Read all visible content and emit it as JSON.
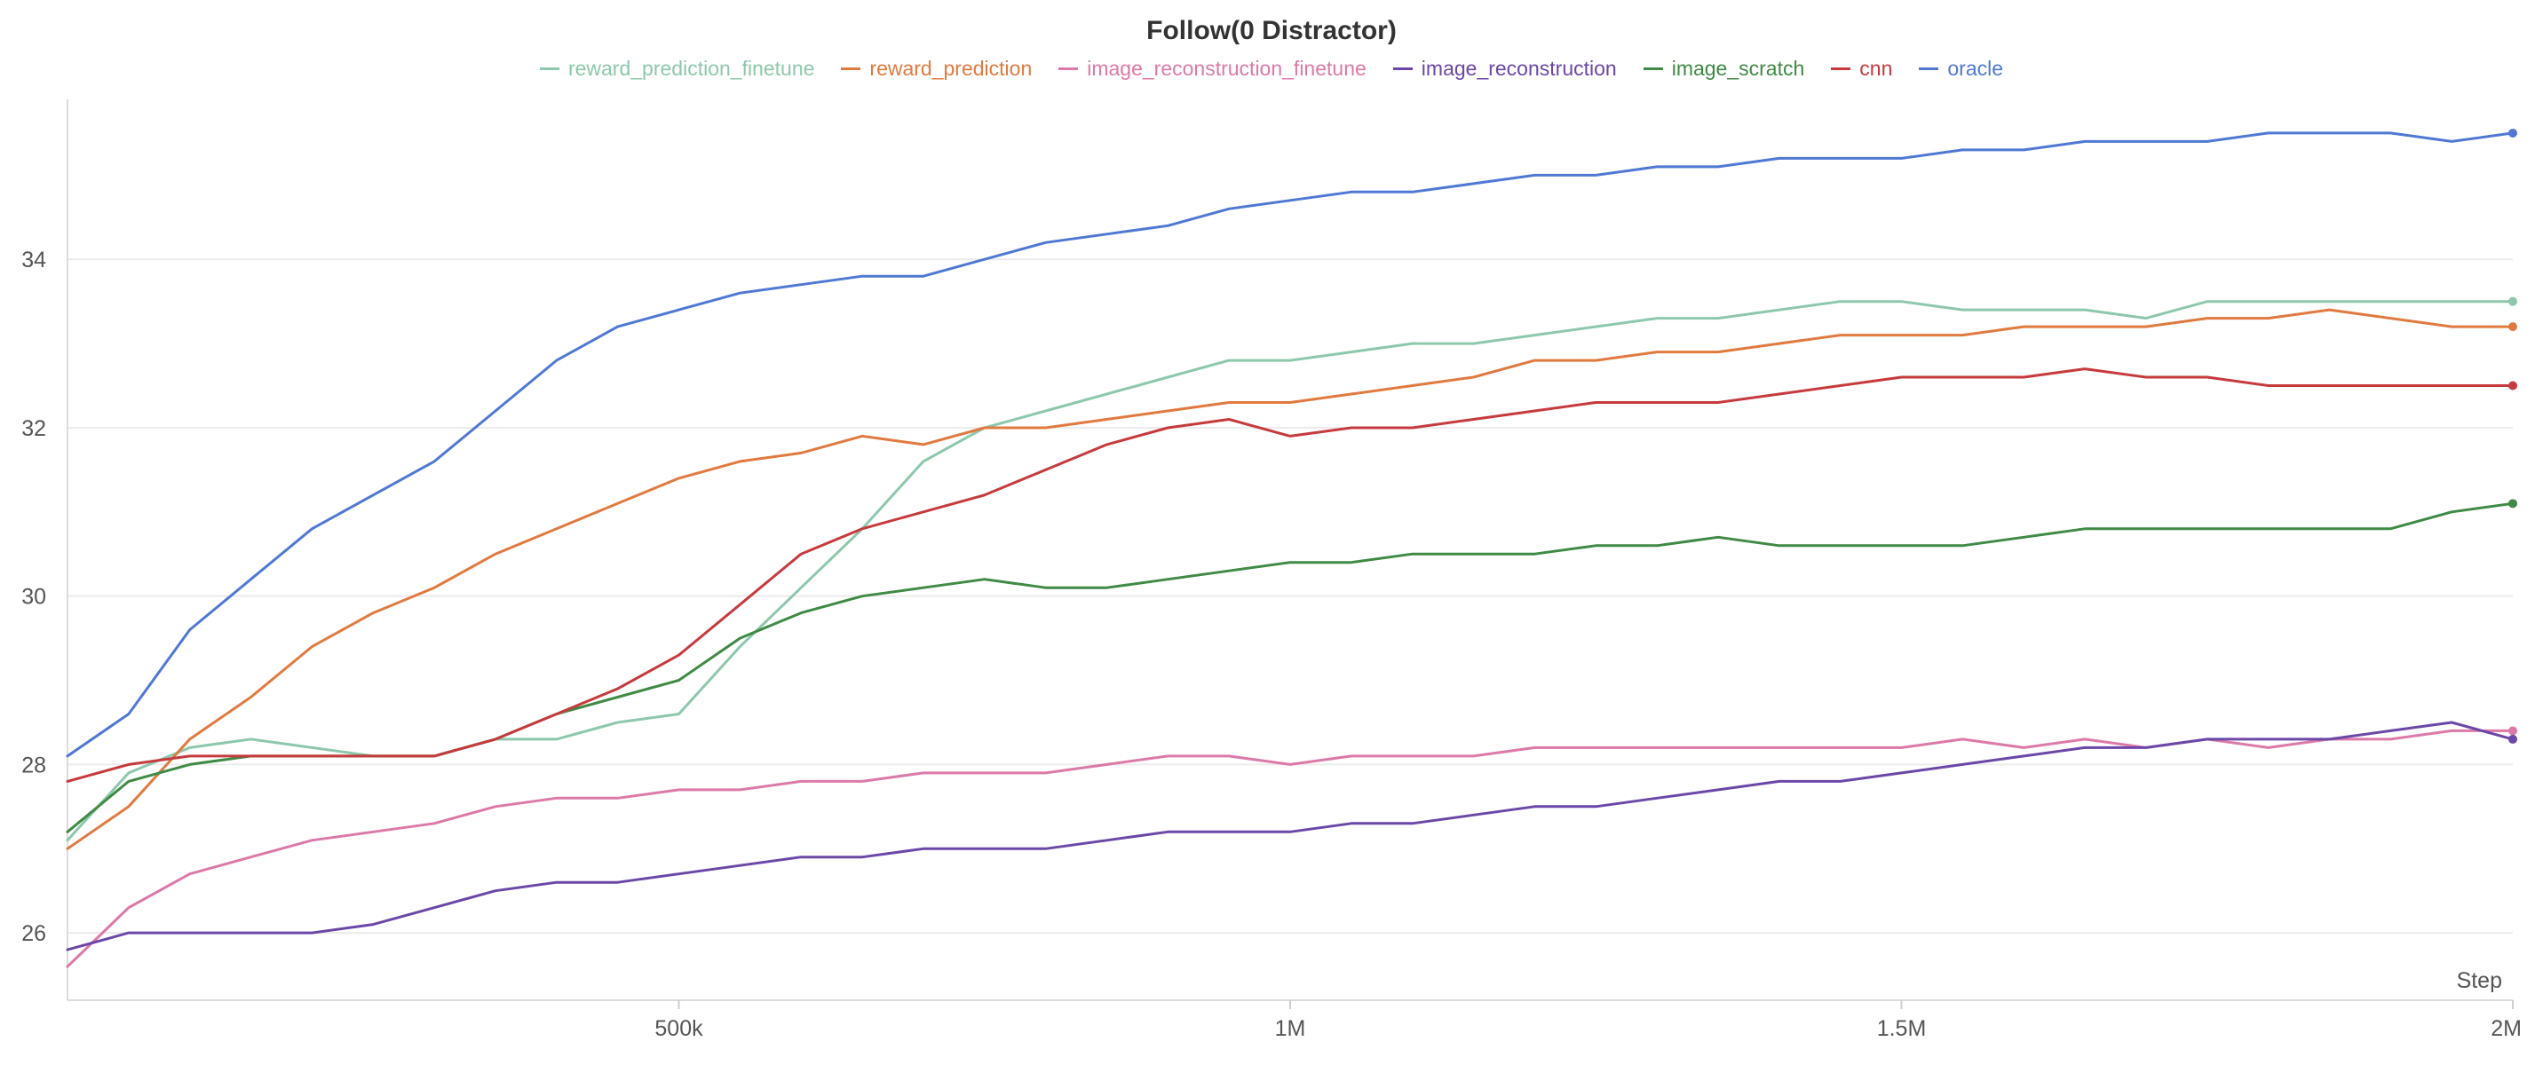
{
  "chart_data": {
    "type": "line",
    "title": "Follow(0 Distractor)",
    "xlabel": "Step",
    "ylabel": "",
    "xlim": [
      0,
      2000000
    ],
    "ylim": [
      25.2,
      35.9
    ],
    "x_ticks": [
      {
        "value": 500000,
        "label": "500k"
      },
      {
        "value": 1000000,
        "label": "1M"
      },
      {
        "value": 1500000,
        "label": "1.5M"
      },
      {
        "value": 2000000,
        "label": "2M"
      }
    ],
    "y_ticks": [
      {
        "value": 26,
        "label": "26"
      },
      {
        "value": 28,
        "label": "28"
      },
      {
        "value": 30,
        "label": "30"
      },
      {
        "value": 32,
        "label": "32"
      },
      {
        "value": 34,
        "label": "34"
      }
    ],
    "grid": true,
    "legend_position": "top-center",
    "series": [
      {
        "name": "reward_prediction_finetune",
        "color": "#8dc8ac",
        "points": [
          [
            0,
            27.1
          ],
          [
            50000,
            27.9
          ],
          [
            100000,
            28.2
          ],
          [
            150000,
            28.3
          ],
          [
            200000,
            28.2
          ],
          [
            250000,
            28.1
          ],
          [
            300000,
            28.1
          ],
          [
            350000,
            28.3
          ],
          [
            400000,
            28.3
          ],
          [
            450000,
            28.5
          ],
          [
            500000,
            28.6
          ],
          [
            550000,
            29.4
          ],
          [
            600000,
            30.1
          ],
          [
            650000,
            30.8
          ],
          [
            700000,
            31.6
          ],
          [
            750000,
            32.0
          ],
          [
            800000,
            32.2
          ],
          [
            850000,
            32.4
          ],
          [
            900000,
            32.6
          ],
          [
            950000,
            32.8
          ],
          [
            1000000,
            32.8
          ],
          [
            1050000,
            32.9
          ],
          [
            1100000,
            33.0
          ],
          [
            1150000,
            33.0
          ],
          [
            1200000,
            33.1
          ],
          [
            1250000,
            33.2
          ],
          [
            1300000,
            33.3
          ],
          [
            1350000,
            33.3
          ],
          [
            1400000,
            33.4
          ],
          [
            1450000,
            33.5
          ],
          [
            1500000,
            33.5
          ],
          [
            1550000,
            33.4
          ],
          [
            1600000,
            33.4
          ],
          [
            1650000,
            33.4
          ],
          [
            1700000,
            33.3
          ],
          [
            1750000,
            33.5
          ],
          [
            1800000,
            33.5
          ],
          [
            1850000,
            33.5
          ],
          [
            1900000,
            33.5
          ],
          [
            1950000,
            33.5
          ],
          [
            2000000,
            33.5
          ]
        ]
      },
      {
        "name": "reward_prediction",
        "color": "#e07a3f",
        "points": [
          [
            0,
            27.0
          ],
          [
            50000,
            27.5
          ],
          [
            100000,
            28.3
          ],
          [
            150000,
            28.8
          ],
          [
            200000,
            29.4
          ],
          [
            250000,
            29.8
          ],
          [
            300000,
            30.1
          ],
          [
            350000,
            30.5
          ],
          [
            400000,
            30.8
          ],
          [
            450000,
            31.1
          ],
          [
            500000,
            31.4
          ],
          [
            550000,
            31.6
          ],
          [
            600000,
            31.7
          ],
          [
            650000,
            31.9
          ],
          [
            700000,
            31.8
          ],
          [
            750000,
            32.0
          ],
          [
            800000,
            32.0
          ],
          [
            850000,
            32.1
          ],
          [
            900000,
            32.2
          ],
          [
            950000,
            32.3
          ],
          [
            1000000,
            32.3
          ],
          [
            1050000,
            32.4
          ],
          [
            1100000,
            32.5
          ],
          [
            1150000,
            32.6
          ],
          [
            1200000,
            32.8
          ],
          [
            1250000,
            32.8
          ],
          [
            1300000,
            32.9
          ],
          [
            1350000,
            32.9
          ],
          [
            1400000,
            33.0
          ],
          [
            1450000,
            33.1
          ],
          [
            1500000,
            33.1
          ],
          [
            1550000,
            33.1
          ],
          [
            1600000,
            33.2
          ],
          [
            1650000,
            33.2
          ],
          [
            1700000,
            33.2
          ],
          [
            1750000,
            33.3
          ],
          [
            1800000,
            33.3
          ],
          [
            1850000,
            33.4
          ],
          [
            1900000,
            33.3
          ],
          [
            1950000,
            33.2
          ],
          [
            2000000,
            33.2
          ]
        ]
      },
      {
        "name": "image_reconstruction_finetune",
        "color": "#dc79a8",
        "points": [
          [
            0,
            25.6
          ],
          [
            50000,
            26.3
          ],
          [
            100000,
            26.7
          ],
          [
            150000,
            26.9
          ],
          [
            200000,
            27.1
          ],
          [
            250000,
            27.2
          ],
          [
            300000,
            27.3
          ],
          [
            350000,
            27.5
          ],
          [
            400000,
            27.6
          ],
          [
            450000,
            27.6
          ],
          [
            500000,
            27.7
          ],
          [
            550000,
            27.7
          ],
          [
            600000,
            27.8
          ],
          [
            650000,
            27.8
          ],
          [
            700000,
            27.9
          ],
          [
            750000,
            27.9
          ],
          [
            800000,
            27.9
          ],
          [
            850000,
            28.0
          ],
          [
            900000,
            28.1
          ],
          [
            950000,
            28.1
          ],
          [
            1000000,
            28.0
          ],
          [
            1050000,
            28.1
          ],
          [
            1100000,
            28.1
          ],
          [
            1150000,
            28.1
          ],
          [
            1200000,
            28.2
          ],
          [
            1250000,
            28.2
          ],
          [
            1300000,
            28.2
          ],
          [
            1350000,
            28.2
          ],
          [
            1400000,
            28.2
          ],
          [
            1450000,
            28.2
          ],
          [
            1500000,
            28.2
          ],
          [
            1550000,
            28.3
          ],
          [
            1600000,
            28.2
          ],
          [
            1650000,
            28.3
          ],
          [
            1700000,
            28.2
          ],
          [
            1750000,
            28.3
          ],
          [
            1800000,
            28.2
          ],
          [
            1850000,
            28.3
          ],
          [
            1900000,
            28.3
          ],
          [
            1950000,
            28.4
          ],
          [
            2000000,
            28.4
          ]
        ]
      },
      {
        "name": "image_reconstruction",
        "color": "#6b47a8",
        "points": [
          [
            0,
            25.8
          ],
          [
            50000,
            26.0
          ],
          [
            100000,
            26.0
          ],
          [
            150000,
            26.0
          ],
          [
            200000,
            26.0
          ],
          [
            250000,
            26.1
          ],
          [
            300000,
            26.3
          ],
          [
            350000,
            26.5
          ],
          [
            400000,
            26.6
          ],
          [
            450000,
            26.6
          ],
          [
            500000,
            26.7
          ],
          [
            550000,
            26.8
          ],
          [
            600000,
            26.9
          ],
          [
            650000,
            26.9
          ],
          [
            700000,
            27.0
          ],
          [
            750000,
            27.0
          ],
          [
            800000,
            27.0
          ],
          [
            850000,
            27.1
          ],
          [
            900000,
            27.2
          ],
          [
            950000,
            27.2
          ],
          [
            1000000,
            27.2
          ],
          [
            1050000,
            27.3
          ],
          [
            1100000,
            27.3
          ],
          [
            1150000,
            27.4
          ],
          [
            1200000,
            27.5
          ],
          [
            1250000,
            27.5
          ],
          [
            1300000,
            27.6
          ],
          [
            1350000,
            27.7
          ],
          [
            1400000,
            27.8
          ],
          [
            1450000,
            27.8
          ],
          [
            1500000,
            27.9
          ],
          [
            1550000,
            28.0
          ],
          [
            1600000,
            28.1
          ],
          [
            1650000,
            28.2
          ],
          [
            1700000,
            28.2
          ],
          [
            1750000,
            28.3
          ],
          [
            1800000,
            28.3
          ],
          [
            1850000,
            28.3
          ],
          [
            1900000,
            28.4
          ],
          [
            1950000,
            28.5
          ],
          [
            2000000,
            28.3
          ]
        ]
      },
      {
        "name": "image_scratch",
        "color": "#3f8a45",
        "points": [
          [
            0,
            27.2
          ],
          [
            50000,
            27.8
          ],
          [
            100000,
            28.0
          ],
          [
            150000,
            28.1
          ],
          [
            200000,
            28.1
          ],
          [
            250000,
            28.1
          ],
          [
            300000,
            28.1
          ],
          [
            350000,
            28.3
          ],
          [
            400000,
            28.6
          ],
          [
            450000,
            28.8
          ],
          [
            500000,
            29.0
          ],
          [
            550000,
            29.5
          ],
          [
            600000,
            29.8
          ],
          [
            650000,
            30.0
          ],
          [
            700000,
            30.1
          ],
          [
            750000,
            30.2
          ],
          [
            800000,
            30.1
          ],
          [
            850000,
            30.1
          ],
          [
            900000,
            30.2
          ],
          [
            950000,
            30.3
          ],
          [
            1000000,
            30.4
          ],
          [
            1050000,
            30.4
          ],
          [
            1100000,
            30.5
          ],
          [
            1150000,
            30.5
          ],
          [
            1200000,
            30.5
          ],
          [
            1250000,
            30.6
          ],
          [
            1300000,
            30.6
          ],
          [
            1350000,
            30.7
          ],
          [
            1400000,
            30.6
          ],
          [
            1450000,
            30.6
          ],
          [
            1500000,
            30.6
          ],
          [
            1550000,
            30.6
          ],
          [
            1600000,
            30.7
          ],
          [
            1650000,
            30.8
          ],
          [
            1700000,
            30.8
          ],
          [
            1750000,
            30.8
          ],
          [
            1800000,
            30.8
          ],
          [
            1850000,
            30.8
          ],
          [
            1900000,
            30.8
          ],
          [
            1950000,
            31.0
          ],
          [
            2000000,
            31.1
          ]
        ]
      },
      {
        "name": "cnn",
        "color": "#c63a3d",
        "points": [
          [
            0,
            27.8
          ],
          [
            50000,
            28.0
          ],
          [
            100000,
            28.1
          ],
          [
            150000,
            28.1
          ],
          [
            200000,
            28.1
          ],
          [
            250000,
            28.1
          ],
          [
            300000,
            28.1
          ],
          [
            350000,
            28.3
          ],
          [
            400000,
            28.6
          ],
          [
            450000,
            28.9
          ],
          [
            500000,
            29.3
          ],
          [
            550000,
            29.9
          ],
          [
            600000,
            30.5
          ],
          [
            650000,
            30.8
          ],
          [
            700000,
            31.0
          ],
          [
            750000,
            31.2
          ],
          [
            800000,
            31.5
          ],
          [
            850000,
            31.8
          ],
          [
            900000,
            32.0
          ],
          [
            950000,
            32.1
          ],
          [
            1000000,
            31.9
          ],
          [
            1050000,
            32.0
          ],
          [
            1100000,
            32.0
          ],
          [
            1150000,
            32.1
          ],
          [
            1200000,
            32.2
          ],
          [
            1250000,
            32.3
          ],
          [
            1300000,
            32.3
          ],
          [
            1350000,
            32.3
          ],
          [
            1400000,
            32.4
          ],
          [
            1450000,
            32.5
          ],
          [
            1500000,
            32.6
          ],
          [
            1550000,
            32.6
          ],
          [
            1600000,
            32.6
          ],
          [
            1650000,
            32.7
          ],
          [
            1700000,
            32.6
          ],
          [
            1750000,
            32.6
          ],
          [
            1800000,
            32.5
          ],
          [
            1850000,
            32.5
          ],
          [
            1900000,
            32.5
          ],
          [
            1950000,
            32.5
          ],
          [
            2000000,
            32.5
          ]
        ]
      },
      {
        "name": "oracle",
        "color": "#4f78d4",
        "points": [
          [
            0,
            28.1
          ],
          [
            50000,
            28.6
          ],
          [
            100000,
            29.6
          ],
          [
            150000,
            30.2
          ],
          [
            200000,
            30.8
          ],
          [
            250000,
            31.2
          ],
          [
            300000,
            31.6
          ],
          [
            350000,
            32.2
          ],
          [
            400000,
            32.8
          ],
          [
            450000,
            33.2
          ],
          [
            500000,
            33.4
          ],
          [
            550000,
            33.6
          ],
          [
            600000,
            33.7
          ],
          [
            650000,
            33.8
          ],
          [
            700000,
            33.8
          ],
          [
            750000,
            34.0
          ],
          [
            800000,
            34.2
          ],
          [
            850000,
            34.3
          ],
          [
            900000,
            34.4
          ],
          [
            950000,
            34.6
          ],
          [
            1000000,
            34.7
          ],
          [
            1050000,
            34.8
          ],
          [
            1100000,
            34.8
          ],
          [
            1150000,
            34.9
          ],
          [
            1200000,
            35.0
          ],
          [
            1250000,
            35.0
          ],
          [
            1300000,
            35.1
          ],
          [
            1350000,
            35.1
          ],
          [
            1400000,
            35.2
          ],
          [
            1450000,
            35.2
          ],
          [
            1500000,
            35.2
          ],
          [
            1550000,
            35.3
          ],
          [
            1600000,
            35.3
          ],
          [
            1650000,
            35.4
          ],
          [
            1700000,
            35.4
          ],
          [
            1750000,
            35.4
          ],
          [
            1800000,
            35.5
          ],
          [
            1850000,
            35.5
          ],
          [
            1900000,
            35.5
          ],
          [
            1950000,
            35.4
          ],
          [
            2000000,
            35.5
          ]
        ]
      }
    ]
  }
}
